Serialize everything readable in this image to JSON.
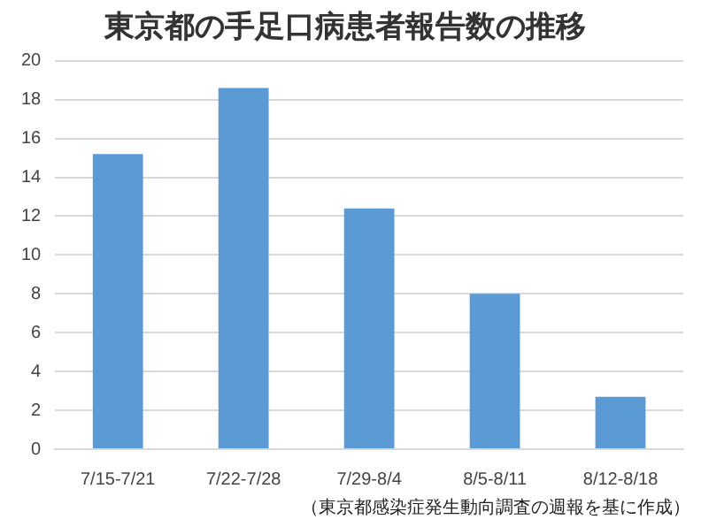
{
  "chart_data": {
    "type": "bar",
    "title": "東京都の手足口病患者報告数の推移",
    "categories": [
      "7/15-7/21",
      "7/22-7/28",
      "7/29-8/4",
      "8/5-8/11",
      "8/12-8/18"
    ],
    "values": [
      15.2,
      18.6,
      12.4,
      8.0,
      2.7
    ],
    "color": "#5b9bd5",
    "ylim": [
      0,
      20
    ],
    "yticks": [
      0,
      2,
      4,
      6,
      8,
      10,
      12,
      14,
      16,
      18,
      20
    ],
    "grid": "y",
    "legend": false,
    "annotations": [
      "（東京都感染症発生動向調査の週報を基に作成）"
    ]
  }
}
